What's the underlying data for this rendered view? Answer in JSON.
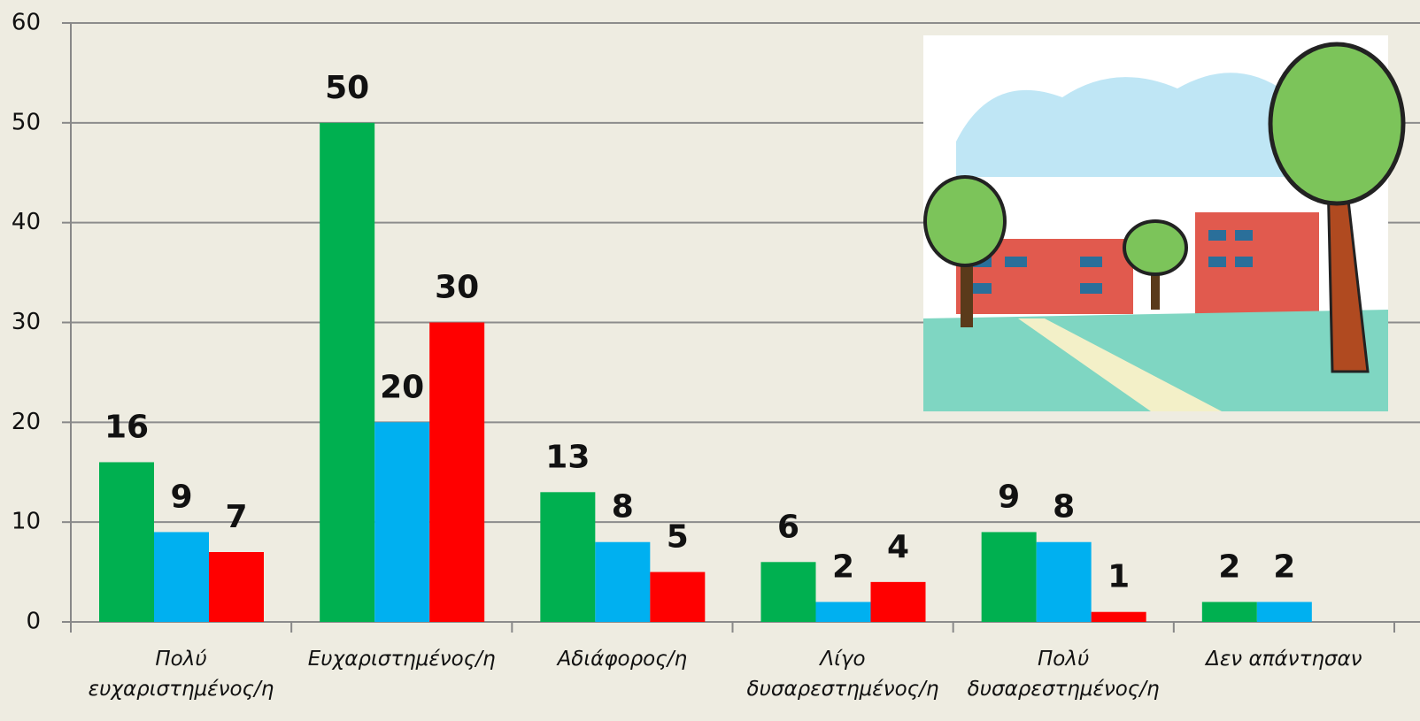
{
  "chart_data": {
    "type": "bar",
    "categories": [
      "Πολύ ευχαριστημένος/η",
      "Ευχαριστημένος/η",
      "Αδιάφορος/η",
      "Λίγο δυσαρεστημένος/η",
      "Πολύ δυσαρεστημένος/η",
      "Δεν απάντησαν"
    ],
    "series": [
      {
        "color": "#00b050",
        "values": [
          16,
          50,
          13,
          6,
          9,
          2
        ]
      },
      {
        "color": "#00b0f0",
        "values": [
          9,
          20,
          8,
          2,
          8,
          2
        ]
      },
      {
        "color": "#ff0000",
        "values": [
          7,
          30,
          5,
          4,
          1,
          null
        ]
      }
    ],
    "ylim": [
      0,
      60
    ],
    "yticks": [
      0,
      10,
      20,
      30,
      40,
      50,
      60
    ],
    "grid": true
  }
}
